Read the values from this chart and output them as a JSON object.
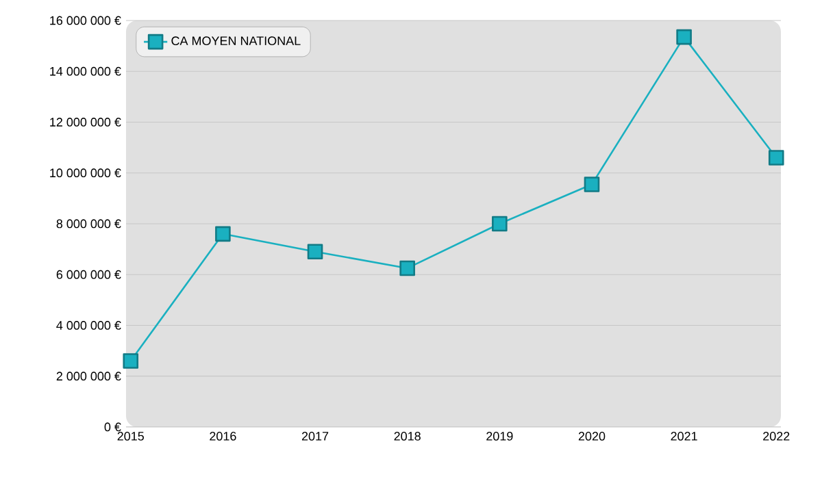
{
  "chart_data": {
    "type": "line",
    "categories": [
      "2015",
      "2016",
      "2017",
      "2018",
      "2019",
      "2020",
      "2021",
      "2022"
    ],
    "series": [
      {
        "name": "CA MOYEN NATIONAL",
        "color": "#1ab0c0",
        "values": [
          2600000,
          7600000,
          6900000,
          6250000,
          8000000,
          9550000,
          15350000,
          10600000
        ]
      }
    ],
    "ylim": [
      0,
      16000000
    ],
    "yticks": [
      {
        "value": 0,
        "label": "0 €"
      },
      {
        "value": 2000000,
        "label": "2 000 000 €"
      },
      {
        "value": 4000000,
        "label": "4 000 000 €"
      },
      {
        "value": 6000000,
        "label": "6 000 000 €"
      },
      {
        "value": 8000000,
        "label": "8 000 000 €"
      },
      {
        "value": 10000000,
        "label": "10 000 000 €"
      },
      {
        "value": 12000000,
        "label": "12 000 000 €"
      },
      {
        "value": 14000000,
        "label": "14 000 000 €"
      },
      {
        "value": 16000000,
        "label": "16 000 000 €"
      }
    ],
    "grid": "y",
    "legend": "top left",
    "marker": "square",
    "line_style": "solid"
  }
}
